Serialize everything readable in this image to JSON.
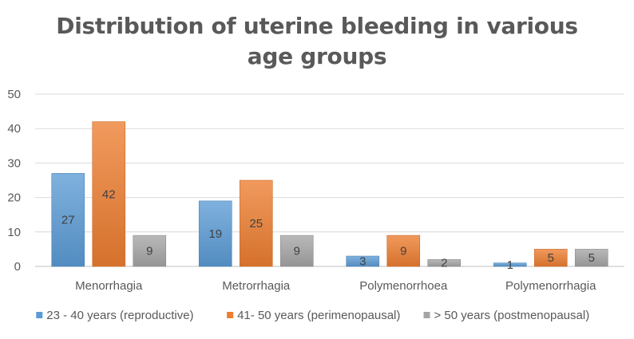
{
  "chart_data": {
    "type": "bar",
    "title": "Distribution of uterine bleeding in various age groups",
    "xlabel": "",
    "ylabel": "",
    "categories": [
      "Menorrhagia",
      "Metrorrhagia",
      "Polymenorrhoea",
      "Polymenorrhagia"
    ],
    "series": [
      {
        "name": "23 - 40 years (reproductive)",
        "color": "#5B9BD5",
        "values": [
          27,
          19,
          3,
          1
        ]
      },
      {
        "name": "41- 50 years (perimenopausal)",
        "color": "#ED7D31",
        "values": [
          42,
          25,
          9,
          5
        ]
      },
      {
        "name": "> 50 years (postmenopausal)",
        "color": "#A5A5A5",
        "values": [
          9,
          9,
          2,
          5
        ]
      }
    ],
    "ylim": [
      0,
      50
    ],
    "yticks": [
      0,
      10,
      20,
      30,
      40,
      50
    ],
    "grid": true,
    "legend_position": "bottom"
  }
}
